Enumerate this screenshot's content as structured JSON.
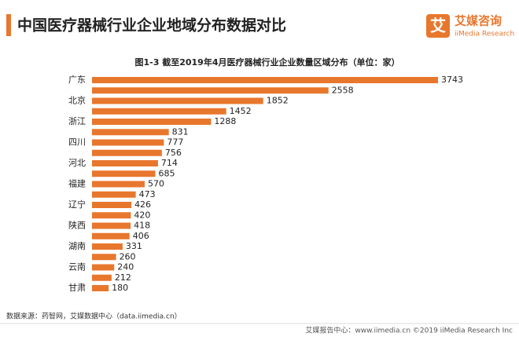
{
  "header": {
    "title": "中国医疗器械行业企业地域分布数据对比",
    "logo_name": "艾媒咨询",
    "logo_sub": "iiMedia Research",
    "logo_icon": "艾"
  },
  "chart_data": {
    "type": "bar",
    "orientation": "horizontal",
    "title": "图1-3 截至2019年4月医疗器械行业企业数量区域分布（单位：家）",
    "categories": [
      "广东",
      null,
      "北京",
      null,
      "浙江",
      null,
      "四川",
      null,
      "河北",
      null,
      "福建",
      null,
      "辽宁",
      null,
      "陕西",
      null,
      "湖南",
      null,
      "云南",
      null,
      "甘肃"
    ],
    "values": [
      3743,
      2558,
      1852,
      1452,
      1288,
      831,
      777,
      756,
      714,
      685,
      570,
      473,
      426,
      420,
      418,
      406,
      331,
      260,
      240,
      212,
      180
    ],
    "color": "#e8772e"
  },
  "footer": {
    "source": "数据来源：药智网，艾媒数据中心（data.iimedia.cn）",
    "copyright": "艾媒报告中心：www.iimedia.cn  ©2019  iiMedia Research  Inc"
  }
}
